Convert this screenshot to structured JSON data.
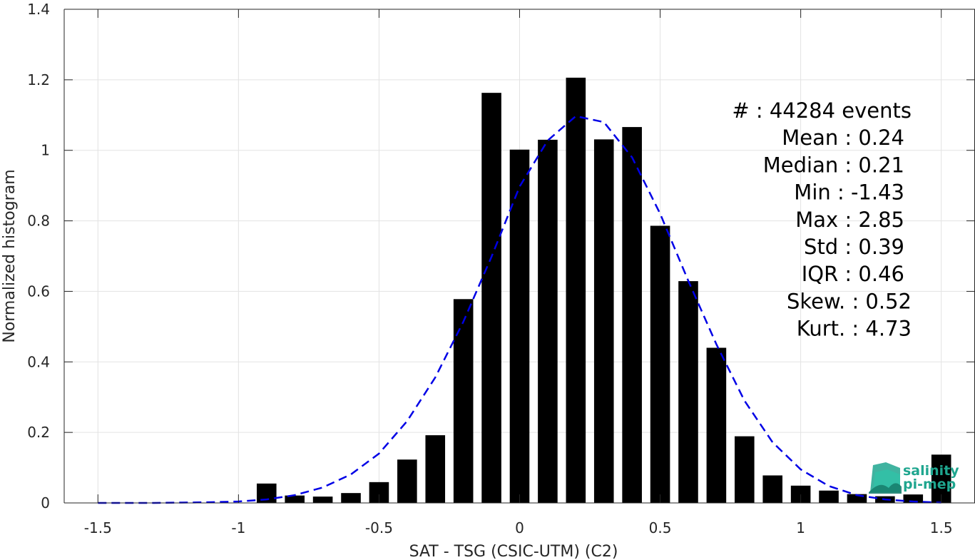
{
  "chart_data": {
    "type": "bar",
    "xlabel": "SAT - TSG (CSIC-UTM) (C2)",
    "ylabel": "Normalized histogram",
    "xlim": [
      -1.62,
      1.62
    ],
    "ylim": [
      0,
      1.4
    ],
    "x_ticks": [
      -1.5,
      -1,
      -0.5,
      0,
      0.5,
      1,
      1.5
    ],
    "x_tick_labels": [
      "-1.5",
      "-1",
      "-0.5",
      "0",
      "0.5",
      "1",
      "1.5"
    ],
    "y_ticks": [
      0,
      0.2,
      0.4,
      0.6,
      0.8,
      1,
      1.2,
      1.4
    ],
    "y_tick_labels": [
      "0",
      "0.2",
      "0.4",
      "0.6",
      "0.8",
      "1",
      "1.2",
      "1.4"
    ],
    "grid": true,
    "bar_width": 0.07,
    "bar_color": "#000000",
    "bars": {
      "x": [
        -0.9,
        -0.8,
        -0.7,
        -0.6,
        -0.5,
        -0.4,
        -0.3,
        -0.2,
        -0.1,
        0.0,
        0.1,
        0.2,
        0.3,
        0.4,
        0.5,
        0.6,
        0.7,
        0.8,
        0.9,
        1.0,
        1.1,
        1.2,
        1.3,
        1.4,
        1.5
      ],
      "values": [
        0.055,
        0.021,
        0.018,
        0.028,
        0.059,
        0.123,
        0.192,
        0.578,
        1.163,
        1.002,
        1.03,
        1.206,
        1.031,
        1.066,
        0.786,
        0.629,
        0.44,
        0.189,
        0.078,
        0.049,
        0.035,
        0.025,
        0.019,
        0.024,
        0.137
      ]
    },
    "fit_curve": {
      "style": "dashed",
      "color": "#0000e6",
      "x": [
        -1.5,
        -1.4,
        -1.3,
        -1.2,
        -1.1,
        -1.0,
        -0.9,
        -0.8,
        -0.7,
        -0.6,
        -0.5,
        -0.4,
        -0.3,
        -0.2,
        -0.1,
        0.0,
        0.1,
        0.2,
        0.3,
        0.4,
        0.5,
        0.6,
        0.7,
        0.8,
        0.9,
        1.0,
        1.1,
        1.2,
        1.3,
        1.4,
        1.5
      ],
      "y": [
        0.0,
        0.0,
        0.0,
        0.001,
        0.002,
        0.004,
        0.01,
        0.022,
        0.044,
        0.081,
        0.14,
        0.232,
        0.356,
        0.514,
        0.698,
        0.897,
        1.028,
        1.097,
        1.08,
        0.98,
        0.82,
        0.63,
        0.45,
        0.29,
        0.172,
        0.095,
        0.048,
        0.022,
        0.01,
        0.004,
        0.001
      ]
    },
    "annotations": [
      "#  : 44284 events",
      "Mean : 0.24",
      "Median : 0.21",
      "Min : -1.43",
      "Max : 2.85",
      "Std : 0.39",
      "IQR : 0.46",
      "Skew. : 0.52",
      "Kurt. : 4.73"
    ]
  },
  "logo": {
    "line1": "salinity",
    "line2": "pi-mep",
    "color": "#1fa68f"
  }
}
